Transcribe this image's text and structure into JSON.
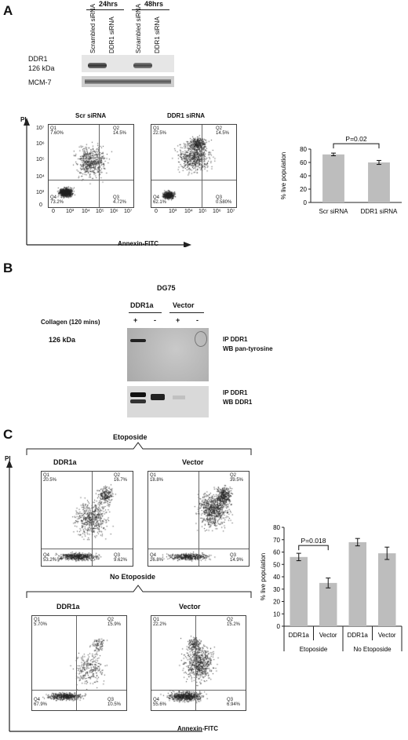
{
  "panelA": {
    "letter": "A",
    "time_24": "24hrs",
    "time_48": "48hrs",
    "lane_labels": [
      "Scrambled siRNA",
      "DDR1 siRNA",
      "Scrambled siRNA",
      "DDR1 siRNA"
    ],
    "ddr1_label": "DDR1",
    "ddr1_kda": "126 kDa",
    "mcm_label": "MCM-7",
    "pi_label": "PI",
    "annexin_label": "Annexin-FITC",
    "flow": [
      {
        "title": "Scr siRNA",
        "q1": "Q1",
        "q1v": "7.60%",
        "q2": "Q2",
        "q2v": "14.5%",
        "q3": "Q3",
        "q3v": "4.72%",
        "q4": "Q4",
        "q4v": "73.2%"
      },
      {
        "title": "DDR1 siRNA",
        "q1": "Q1",
        "q1v": "22.5%",
        "q2": "Q2",
        "q2v": "14.5%",
        "q3": "Q3",
        "q3v": "0.580%",
        "q4": "Q4",
        "q4v": "62.1%"
      }
    ],
    "axis_ticks_y": [
      "10⁷",
      "10⁶",
      "10⁵",
      "10⁴",
      "10³",
      "0"
    ],
    "axis_ticks_x": [
      "0",
      "10³",
      "10⁴",
      "10⁵",
      "10⁶",
      "10⁷"
    ]
  },
  "panelB": {
    "letter": "B",
    "cell_line": "DG75",
    "group1": "DDR1a",
    "group2": "Vector",
    "collagen_label": "Collagen (120 mins)",
    "signs": [
      "+",
      "-",
      "+",
      "-"
    ],
    "kda": "126 kDa",
    "blot1_label_1": "IP DDR1",
    "blot1_label_2": "WB pan-tyrosine",
    "blot2_label_1": "IP DDR1",
    "blot2_label_2": "WB DDR1"
  },
  "panelC": {
    "letter": "C",
    "etoposide": "Etoposide",
    "no_etoposide": "No Etoposide",
    "pi_label": "PI",
    "annexin_label": "Annexin-FITC",
    "flow": [
      {
        "title": "DDR1a",
        "q1": "Q1",
        "q1v": "20.5%",
        "q2": "Q2",
        "q2v": "16.7%",
        "q3": "Q3",
        "q3v": "9.62%",
        "q4": "Q4",
        "q4v": "53.2%"
      },
      {
        "title": "Vector",
        "q1": "Q1",
        "q1v": "18.8%",
        "q2": "Q2",
        "q2v": "39.5%",
        "q3": "Q3",
        "q3v": "14.9%",
        "q4": "Q4",
        "q4v": "26.8%"
      },
      {
        "title": "DDR1a",
        "q1": "Q1",
        "q1v": "5.70%",
        "q2": "Q2",
        "q2v": "15.9%",
        "q3": "Q3",
        "q3v": "10.5%",
        "q4": "Q4",
        "q4v": "67.9%"
      },
      {
        "title": "Vector",
        "q1": "Q1",
        "q1v": "22.2%",
        "q2": "Q2",
        "q2v": "15.2%",
        "q3": "Q3",
        "q3v": "6.94%",
        "q4": "Q4",
        "q4v": "55.6%"
      }
    ]
  },
  "chart_data": [
    {
      "type": "bar",
      "categories": [
        "Scr siRNA",
        "DDR1 siRNA"
      ],
      "values": [
        72,
        60
      ],
      "errors": [
        2,
        3
      ],
      "ylabel": "% live population",
      "ylim": [
        0,
        80
      ],
      "yticks": [
        0,
        20,
        40,
        60,
        80
      ],
      "annotation": "P=0.02",
      "bar_color": "#bdbdbd"
    },
    {
      "type": "bar",
      "categories": [
        "DDR1a",
        "Vector",
        "DDR1a",
        "Vector"
      ],
      "groups": [
        "Etoposide",
        "No Etoposide"
      ],
      "values": [
        56,
        35,
        68,
        59
      ],
      "errors": [
        3,
        4,
        3,
        5
      ],
      "ylabel": "% live population",
      "ylim": [
        0,
        80
      ],
      "yticks": [
        0,
        10,
        20,
        30,
        40,
        50,
        60,
        70,
        80
      ],
      "annotation": "P=0.018",
      "bar_color": "#bdbdbd"
    }
  ]
}
